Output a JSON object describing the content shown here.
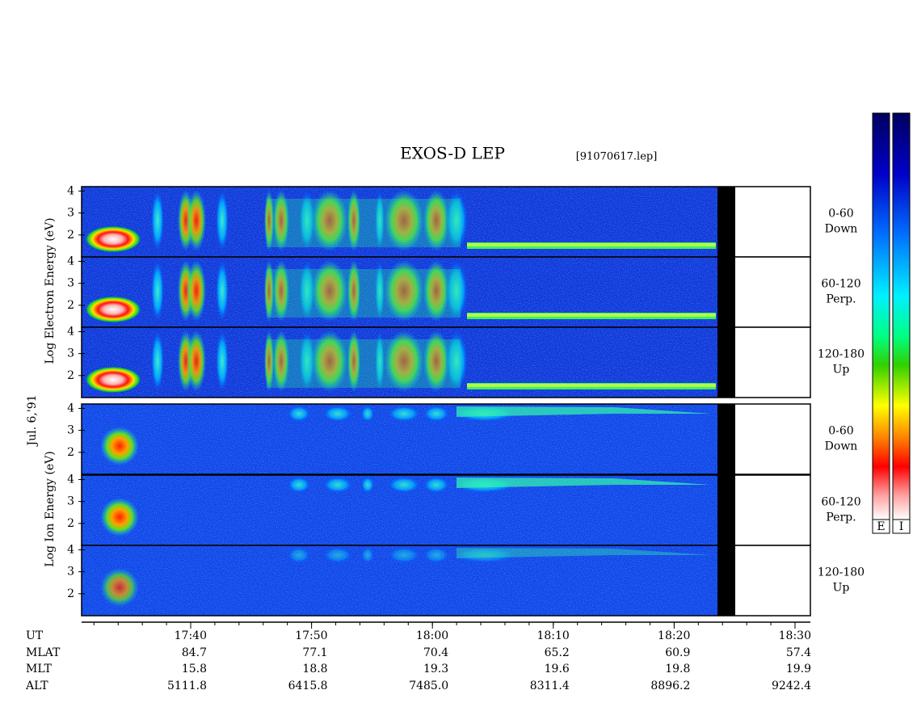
{
  "title": "EXOS-D LEP",
  "file": "[91070617.lep]",
  "date": "Jul. 6,'91",
  "y_axis": {
    "lim": [
      1,
      4.2
    ],
    "ticks": [
      2,
      3,
      4
    ]
  },
  "species": [
    {
      "label": "Log Electron Energy (eV)",
      "panels": [
        {
          "range": "0-60",
          "direction": "Down"
        },
        {
          "range": "60-120",
          "direction": "Perp."
        },
        {
          "range": "120-180",
          "direction": "Up"
        }
      ]
    },
    {
      "label": "Log Ion Energy (eV)",
      "panels": [
        {
          "range": "0-60",
          "direction": "Down"
        },
        {
          "range": "60-120",
          "direction": "Perp."
        },
        {
          "range": "120-180",
          "direction": "Up"
        }
      ]
    }
  ],
  "x_axis": {
    "rows": [
      {
        "name": "UT",
        "values": [
          "17:40",
          "17:50",
          "18:00",
          "18:10",
          "18:20",
          "18:30"
        ]
      },
      {
        "name": "MLAT",
        "values": [
          "84.7",
          "77.1",
          "70.4",
          "65.2",
          "60.9",
          "57.4"
        ]
      },
      {
        "name": "MLT",
        "values": [
          "15.8",
          "18.8",
          "19.3",
          "19.6",
          "19.8",
          "19.9"
        ]
      },
      {
        "name": "ALT",
        "values": [
          "5111.8",
          "6415.8",
          "7485.0",
          "8311.4",
          "8896.2",
          "9242.4"
        ]
      }
    ]
  },
  "colorbars": [
    "E",
    "I"
  ]
}
